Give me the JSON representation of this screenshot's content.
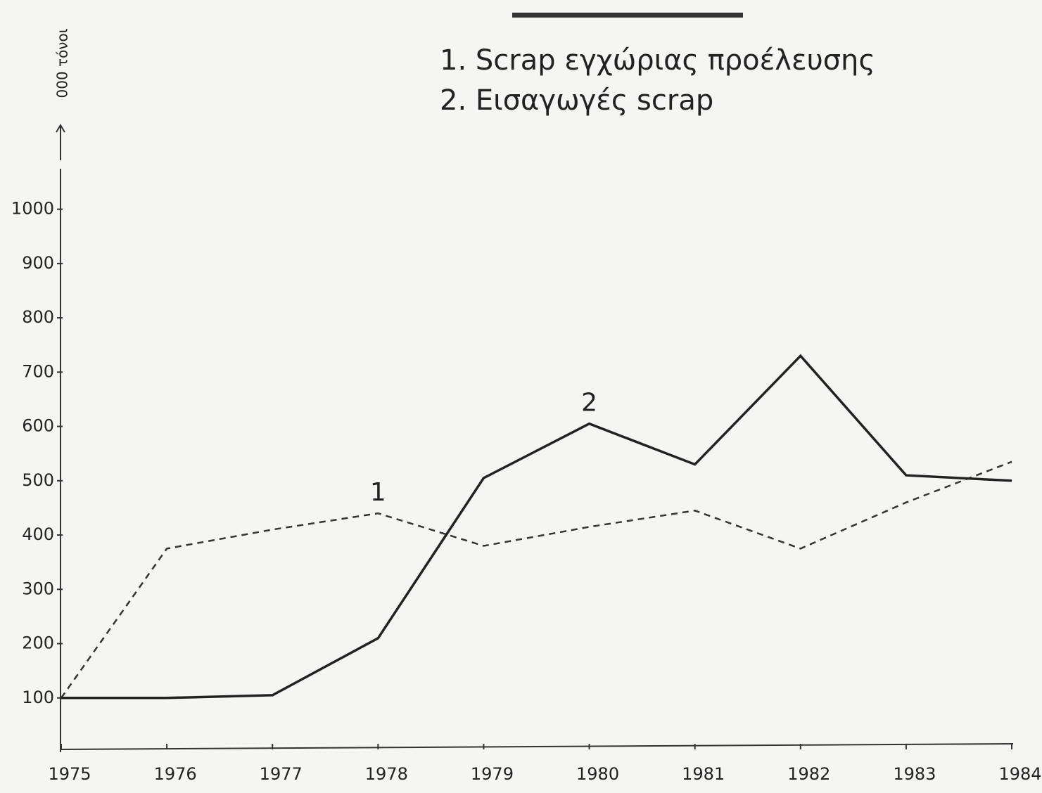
{
  "chart_data": {
    "type": "line",
    "y_label": "000 τόνοι",
    "x": [
      1975,
      1976,
      1977,
      1978,
      1979,
      1980,
      1981,
      1982,
      1983,
      1984
    ],
    "xlim": [
      1975,
      1984
    ],
    "xticks": [
      1975,
      1976,
      1977,
      1978,
      1979,
      1980,
      1981,
      1982,
      1983,
      1984
    ],
    "ylim": [
      0,
      1050
    ],
    "yticks": [
      100,
      200,
      300,
      400,
      500,
      600,
      700,
      800,
      900,
      1000
    ],
    "series": [
      {
        "name": "1. Scrap εγχώριας προέλευσης",
        "line_label": "1",
        "label_at": 3,
        "color": "#333333",
        "dashed": true,
        "values": [
          100,
          375,
          410,
          440,
          380,
          415,
          445,
          375,
          460,
          535
        ]
      },
      {
        "name": "2. Εισαγωγές scrap",
        "line_label": "2",
        "label_at": 5,
        "color": "#222222",
        "dashed": false,
        "values": [
          100,
          100,
          105,
          210,
          505,
          605,
          530,
          730,
          510,
          500
        ]
      }
    ]
  }
}
